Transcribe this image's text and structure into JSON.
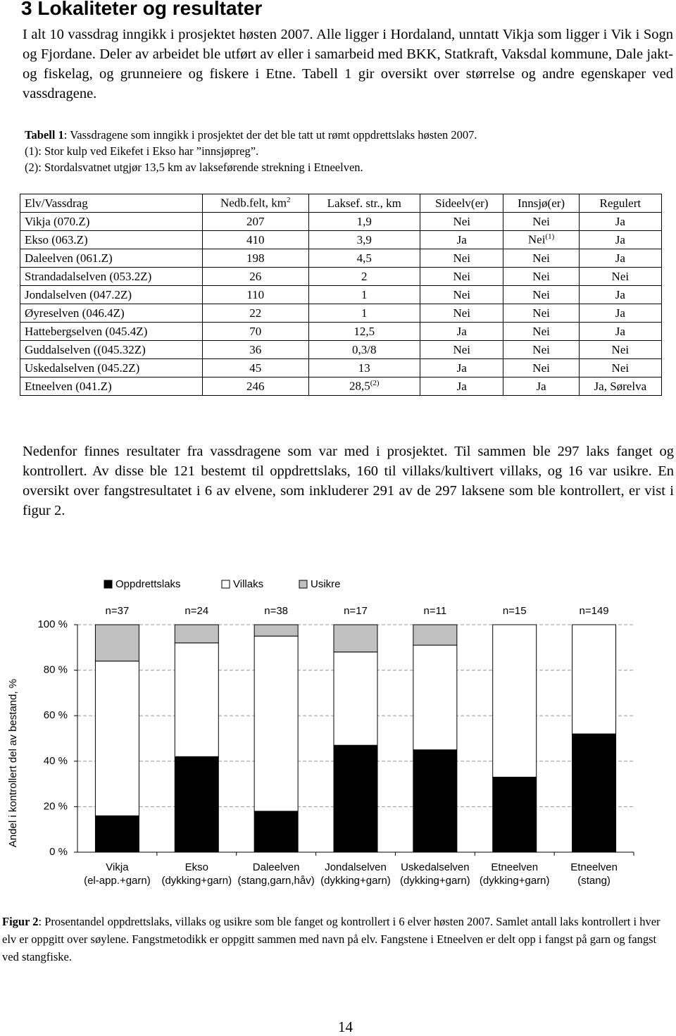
{
  "heading": "3 Lokaliteter og resultater",
  "intro": "I alt 10 vassdrag inngikk i prosjektet høsten 2007. Alle ligger i Hordaland, unntatt Vikja som ligger i Vik i Sogn og Fjordane. Deler av arbeidet ble utført av eller i samarbeid med BKK, Statkraft, Vaksdal kommune, Dale jakt- og fiskelag, og grunneiere og fiskere i Etne. Tabell 1 gir oversikt over størrelse og andre egenskaper ved vassdragene.",
  "table_caption": {
    "label": "Tabell 1",
    "text": ": Vassdragene som inngikk i prosjektet der det ble tatt ut rømt oppdrettslaks høsten 2007.",
    "notes": [
      "(1): Stor kulp ved Eikefet i Ekso har ”innsjøpreg”.",
      "(2): Stordalsvatnet utgjør 13,5 km av lakseførende strekning i Etneelven."
    ]
  },
  "table": {
    "header": [
      "Elv/Vassdrag",
      {
        "text": "Nedb.felt, km",
        "sup": "2"
      },
      "Laksef. str., km",
      "Sideelv(er)",
      "Innsjø(er)",
      "Regulert"
    ],
    "rows": [
      [
        "Vikja (070.Z)",
        "207",
        "1,9",
        "Nei",
        "Nei",
        "Ja"
      ],
      [
        "Ekso (063.Z)",
        "410",
        "3,9",
        "Ja",
        {
          "text": "Nei",
          "sup": "(1)"
        },
        "Ja"
      ],
      [
        "Daleelven (061.Z)",
        "198",
        "4,5",
        "Nei",
        "Nei",
        "Ja"
      ],
      [
        "Strandadalselven (053.2Z)",
        "26",
        "2",
        "Nei",
        "Nei",
        "Nei"
      ],
      [
        "Jondalselven (047.2Z)",
        "110",
        "1",
        "Nei",
        "Nei",
        "Ja"
      ],
      [
        "Øyreselven (046.4Z)",
        "22",
        "1",
        "Nei",
        "Nei",
        "Ja"
      ],
      [
        "Hattebergselven (045.4Z)",
        "70",
        "12,5",
        "Ja",
        "Nei",
        "Ja"
      ],
      [
        "Guddalselven ((045.32Z)",
        "36",
        "0,3/8",
        "Nei",
        "Nei",
        "Nei"
      ],
      [
        "Uskedalselven (045.2Z)",
        "45",
        "13",
        "Ja",
        "Nei",
        "Nei"
      ],
      [
        "Etneelven (041.Z)",
        "246",
        {
          "text": "28,5",
          "sup": "(2)"
        },
        "Ja",
        "Ja",
        "Ja, Sørelva"
      ]
    ]
  },
  "results": "Nedenfor finnes resultater fra vassdragene som var med i prosjektet. Til sammen ble 297 laks fanget og kontrollert. Av disse ble 121 bestemt til oppdrettslaks, 160 til villaks/kultivert villaks, og 16 var usikre. En oversikt over fangstresultatet i 6 av elvene, som inkluderer 291 av de 297 laksene som ble kontrollert, er vist i figur 2.",
  "chart_data": {
    "type": "stacked-bar",
    "y_label": "Andel i kontrollert del av bestand, %",
    "categories": [
      [
        "Vikja",
        "(el-app.+garn)"
      ],
      [
        "Ekso",
        "(dykking+garn)"
      ],
      [
        "Daleelven",
        "(stang,garn,håv)"
      ],
      [
        "Jondalselven",
        "(dykking+garn)"
      ],
      [
        "Uskedalselven",
        "(dykking+garn)"
      ],
      [
        "Etneelven",
        "(dykking+garn)"
      ],
      [
        "Etneelven",
        "(stang)"
      ]
    ],
    "annotations": [
      "n=37",
      "n=24",
      "n=38",
      "n=17",
      "n=11",
      "n=15",
      "n=149"
    ],
    "series": [
      {
        "name": "Oppdrettslaks",
        "color": "#000000",
        "values": [
          16,
          42,
          18,
          47,
          45,
          33,
          52
        ]
      },
      {
        "name": "Villaks",
        "color": "#ffffff",
        "values": [
          68,
          50,
          77,
          41,
          46,
          67,
          48
        ]
      },
      {
        "name": "Usikre",
        "color": "#c0c0c0",
        "values": [
          16,
          8,
          5,
          12,
          9,
          0,
          0
        ]
      }
    ],
    "ylim": [
      0,
      100
    ],
    "yticks": [
      {
        "value": 0,
        "label": "0 %"
      },
      {
        "value": 20,
        "label": "20 %"
      },
      {
        "value": 40,
        "label": "40 %"
      },
      {
        "value": 60,
        "label": "60 %"
      },
      {
        "value": 80,
        "label": "80 %"
      },
      {
        "value": 100,
        "label": "100 %"
      }
    ],
    "grid": true,
    "legend": "top"
  },
  "figure_caption": {
    "label": "Figur 2",
    "text": ": Prosentandel oppdrettslaks, villaks og usikre som ble fanget og kontrollert i 6 elver høsten 2007. Samlet antall laks kontrollert i hver elv er oppgitt over søylene. Fangstmetodikk er oppgitt sammen med navn på elv. Fangstene i Etneelven er delt opp i fangst på garn og fangst ved stangfiske."
  },
  "page_number": "14"
}
